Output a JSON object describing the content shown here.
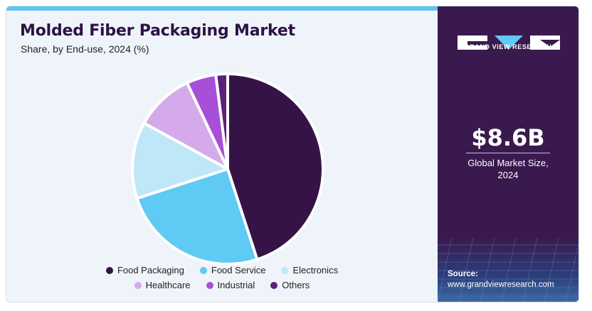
{
  "header": {
    "title": "Molded Fiber Packaging Market",
    "subtitle": "Share, by End-use, 2024 (%)"
  },
  "chart_data": {
    "type": "pie",
    "title": "Molded Fiber Packaging Market",
    "subtitle": "Share, by End-use, 2024 (%)",
    "legend_position": "bottom",
    "slices": [
      {
        "name": "Food Packaging",
        "value": 45,
        "color": "#351346"
      },
      {
        "name": "Food Service",
        "value": 25,
        "color": "#5fcaf4"
      },
      {
        "name": "Electronics",
        "value": 13,
        "color": "#bfe7f8"
      },
      {
        "name": "Healthcare",
        "value": 10,
        "color": "#d5aaea"
      },
      {
        "name": "Industrial",
        "value": 5,
        "color": "#a74fd8"
      },
      {
        "name": "Others",
        "value": 2,
        "color": "#5b2078"
      }
    ]
  },
  "sidebar": {
    "brand": "GRAND VIEW RESEARCH",
    "market_size": "$8.6B",
    "market_size_label_line1": "Global Market Size,",
    "market_size_label_line2": "2024",
    "source_label": "Source:",
    "source_url": "www.grandviewresearch.com",
    "background_color": "#3a1a4e"
  }
}
